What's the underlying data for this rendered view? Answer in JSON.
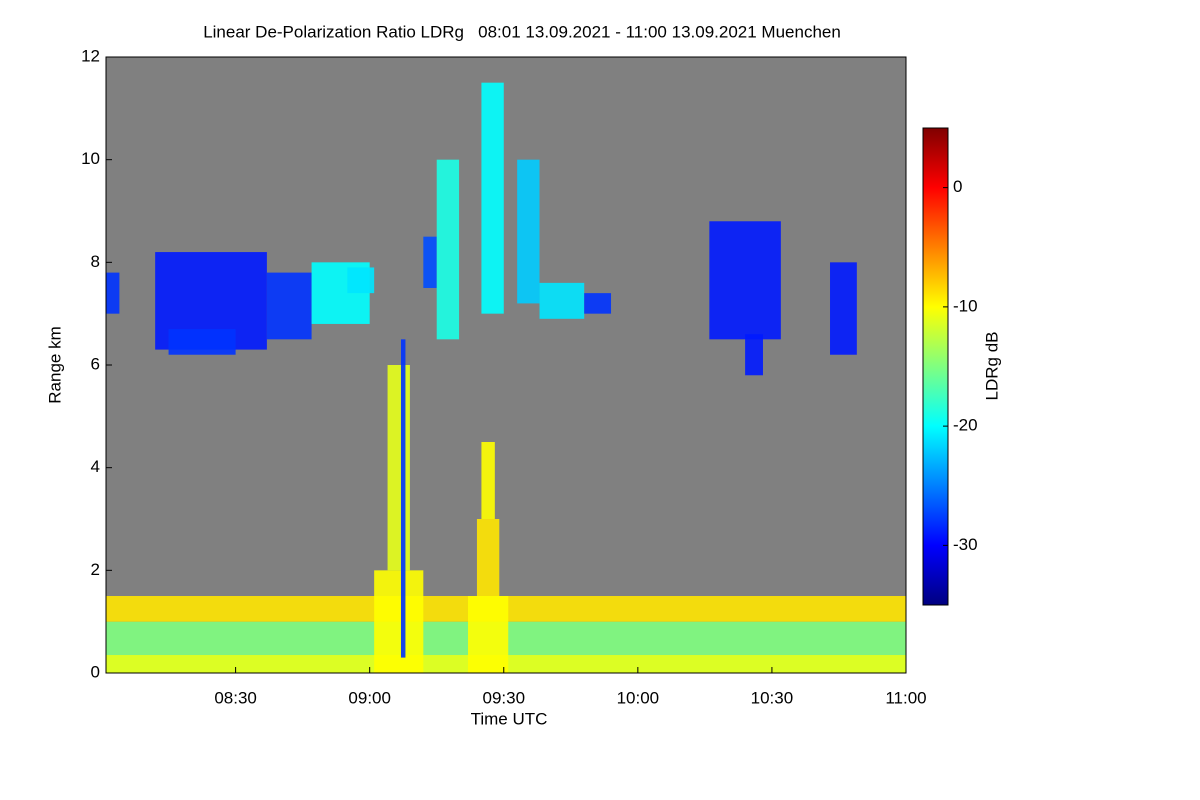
{
  "chart_data": {
    "type": "heatmap",
    "title": "Linear De-Polarization Ratio LDRg   08:01 13.09.2021 - 11:00 13.09.2021 Muenchen",
    "x_label": "Time UTC",
    "y_label": "Range km",
    "colorbar_label": "LDRg dB",
    "xlim": [
      481,
      660
    ],
    "xticks": [
      {
        "value": 510,
        "label": "08:30"
      },
      {
        "value": 540,
        "label": "09:00"
      },
      {
        "value": 570,
        "label": "09:30"
      },
      {
        "value": 600,
        "label": "10:00"
      },
      {
        "value": 630,
        "label": "10:30"
      },
      {
        "value": 660,
        "label": "11:00"
      }
    ],
    "ylim": [
      0,
      12
    ],
    "yticks": [
      0,
      2,
      4,
      6,
      8,
      10,
      12
    ],
    "zlim": [
      -35,
      5
    ],
    "zticks": [
      0,
      -10,
      -20,
      -30
    ],
    "colormap": "jet",
    "background": "#808080",
    "cells": [
      {
        "x": [
          481,
          660
        ],
        "y": [
          0,
          1.0
        ],
        "value": -15
      },
      {
        "x": [
          481,
          660
        ],
        "y": [
          1.0,
          1.5
        ],
        "value": -9
      },
      {
        "x": [
          481,
          660
        ],
        "y": [
          0,
          0.35
        ],
        "value": -11
      },
      {
        "x": [
          541,
          552
        ],
        "y": [
          0,
          2
        ],
        "value": -10
      },
      {
        "x": [
          544,
          549
        ],
        "y": [
          2,
          6
        ],
        "value": -11
      },
      {
        "x": [
          547,
          548
        ],
        "y": [
          0.3,
          6.5
        ],
        "value": -28
      },
      {
        "x": [
          562,
          571
        ],
        "y": [
          0,
          1.5
        ],
        "value": -10
      },
      {
        "x": [
          564,
          569
        ],
        "y": [
          1.5,
          3
        ],
        "value": -9
      },
      {
        "x": [
          565,
          568
        ],
        "y": [
          3,
          4.5
        ],
        "value": -10
      },
      {
        "x": [
          481,
          484
        ],
        "y": [
          7,
          7.8
        ],
        "value": -28
      },
      {
        "x": [
          492,
          517
        ],
        "y": [
          6.3,
          8.2
        ],
        "value": -29
      },
      {
        "x": [
          495,
          510
        ],
        "y": [
          6.2,
          6.7
        ],
        "value": -28
      },
      {
        "x": [
          517,
          527
        ],
        "y": [
          6.5,
          7.8
        ],
        "value": -28
      },
      {
        "x": [
          527,
          540
        ],
        "y": [
          6.8,
          8.0
        ],
        "value": -20
      },
      {
        "x": [
          535,
          541
        ],
        "y": [
          7.4,
          7.9
        ],
        "value": -21
      },
      {
        "x": [
          552,
          555
        ],
        "y": [
          7.5,
          8.5
        ],
        "value": -27
      },
      {
        "x": [
          555,
          560
        ],
        "y": [
          6.5,
          10
        ],
        "value": -19
      },
      {
        "x": [
          565,
          570
        ],
        "y": [
          7,
          11.5
        ],
        "value": -20
      },
      {
        "x": [
          573,
          578
        ],
        "y": [
          7.2,
          10
        ],
        "value": -22
      },
      {
        "x": [
          578,
          588
        ],
        "y": [
          6.9,
          7.6
        ],
        "value": -21
      },
      {
        "x": [
          588,
          594
        ],
        "y": [
          7,
          7.4
        ],
        "value": -28
      },
      {
        "x": [
          616,
          632
        ],
        "y": [
          6.5,
          8.8
        ],
        "value": -29
      },
      {
        "x": [
          624,
          628
        ],
        "y": [
          5.8,
          6.6
        ],
        "value": -29
      },
      {
        "x": [
          643,
          649
        ],
        "y": [
          6.2,
          8.0
        ],
        "value": -29
      }
    ]
  }
}
